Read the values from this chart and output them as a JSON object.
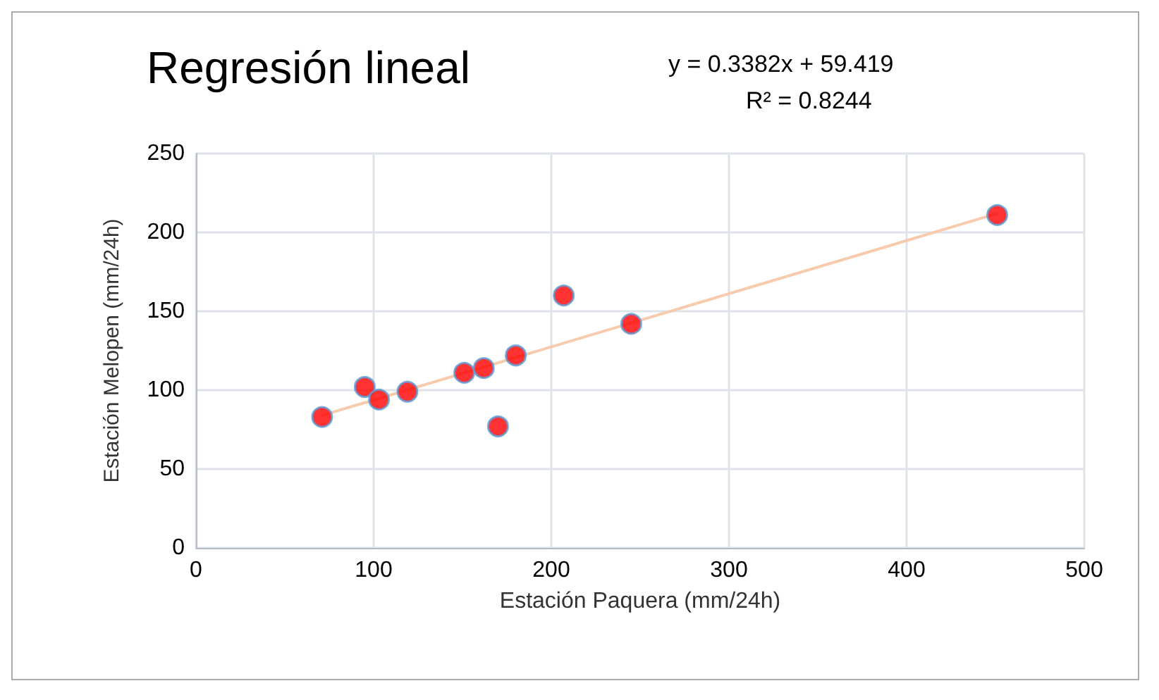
{
  "chart_data": {
    "type": "scatter",
    "title": "Regresión lineal",
    "xlabel": "Estación Paquera (mm/24h)",
    "ylabel": "Estación Melopen (mm/24h)",
    "annotations": [
      "y = 0.3382x + 59.419",
      "R² = 0.8244"
    ],
    "x": [
      71,
      95,
      103,
      119,
      151,
      162,
      180,
      170,
      207,
      245,
      451
    ],
    "series": [
      {
        "color": "#ff0000",
        "marker": "circle",
        "values": [
          83,
          102,
          94,
          99,
          111,
          114,
          122,
          77,
          160,
          142,
          211
        ]
      },
      {
        "type": "line",
        "color": "#f8cbad",
        "marker": "none",
        "x": [
          71,
          451
        ],
        "values": [
          84,
          212
        ]
      }
    ],
    "xlim": [
      0,
      500
    ],
    "xticks": [
      0,
      100,
      200,
      300,
      400,
      500
    ],
    "ylim": [
      0,
      250
    ],
    "yticks": [
      0,
      50,
      100,
      150,
      200,
      250
    ],
    "grid": true
  }
}
